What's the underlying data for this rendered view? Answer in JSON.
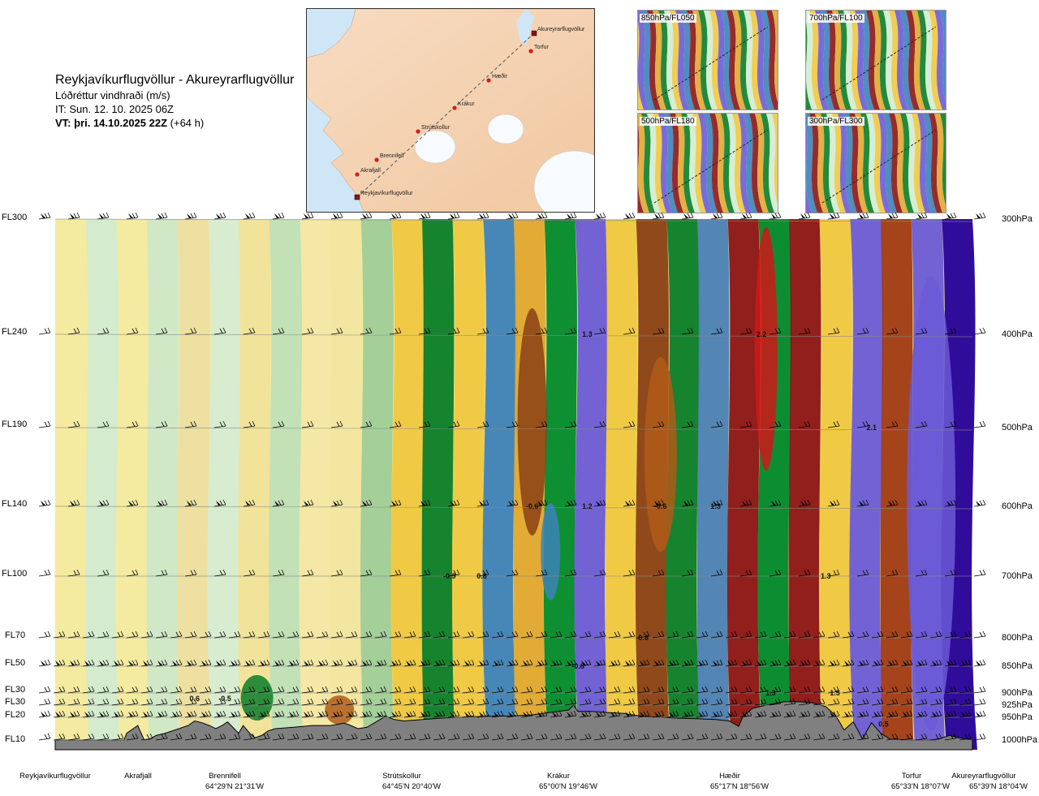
{
  "header": {
    "route": "Reykjavíkurflugvöllur - Akureyrarflugvöllur",
    "variable": "Lóðréttur vindhraði (m/s)",
    "issue_time": "IT: Sun. 12. 10. 2025 06Z",
    "valid_time_bold": "VT: þri. 14.10.2025 22Z",
    "valid_time_offset": "(+64 h)"
  },
  "map": {
    "points": [
      {
        "name": "Akureyrarflugvöllur"
      },
      {
        "name": "Torfur"
      },
      {
        "name": "Hæðir"
      },
      {
        "name": "Krákur"
      },
      {
        "name": "Strútskollur"
      },
      {
        "name": "Brennifell"
      },
      {
        "name": "Akrafjall"
      },
      {
        "name": "Reykjavíkurflugvöllur"
      }
    ]
  },
  "thumbnails": [
    {
      "label": "850hPa/FL050"
    },
    {
      "label": "700hPa/FL100"
    },
    {
      "label": "500hPa/FL180"
    },
    {
      "label": "300hPa/FL300"
    }
  ],
  "colors": {
    "band": [
      "#f3eba0",
      "#d2ecd0",
      "#f3eba0",
      "#cfe8c8",
      "#ecdfa0",
      "#d6ecd2",
      "#f0e49a",
      "#bfe0b8",
      "#f4e7a5",
      "#f2e6a0",
      "#9fce99",
      "#f0c840",
      "#0a7d28",
      "#f0c840",
      "#3d82b8",
      "#e0a830",
      "#008a2c",
      "#6a5bd6",
      "#f0c840",
      "#8a4014",
      "#0a7d28",
      "#4a7fb6",
      "#8b1414",
      "#00882c",
      "#8b1414",
      "#f0c840",
      "#6a5bd6",
      "#a03a14",
      "#6a5bd6",
      "#25009a"
    ],
    "terrain": "#808080"
  },
  "chart_data": {
    "type": "heatmap",
    "title": "Reykjavíkurflugvöllur - Akureyrarflugvöllur",
    "variable": "Lóðréttur vindhraði (m/s)",
    "flight_levels": [
      "FL300",
      "FL240",
      "FL190",
      "FL140",
      "FL100",
      "FL70",
      "FL50",
      "FL30",
      "FL30",
      "FL20",
      "FL10"
    ],
    "pressure_levels": [
      "300hPa",
      "400hPa",
      "500hPa",
      "600hPa",
      "700hPa",
      "800hPa",
      "850hPa",
      "900hPa",
      "925hPa",
      "950hPa",
      "1000hPa"
    ],
    "pressure_values": [
      300,
      400,
      500,
      600,
      700,
      800,
      850,
      900,
      925,
      950,
      1000
    ],
    "locations": [
      {
        "name": "Reykjavíkurflugvöllur",
        "coord": "",
        "x": 0.0
      },
      {
        "name": "Akrafjall",
        "coord": "",
        "x": 0.09
      },
      {
        "name": "Brennifell",
        "coord": "64°29'N 21°31'W",
        "x": 0.187
      },
      {
        "name": "Strútskollur",
        "coord": "64°45'N 20°40'W",
        "x": 0.377
      },
      {
        "name": "Krákur",
        "coord": "65°00'N 19°46'W",
        "x": 0.575
      },
      {
        "name": "Hæðir",
        "coord": "65°17'N 18°56'W",
        "x": 0.771
      },
      {
        "name": "Torfur",
        "coord": "65°33'N 18°07'W",
        "x": 0.94
      },
      {
        "name": "Akureyrarflugvöllur",
        "coord": "65°39'N 18°04'W",
        "x": 1.0
      }
    ],
    "value_labels": [
      {
        "text": "1.3",
        "x": 0.58,
        "p": 400
      },
      {
        "text": "2.2",
        "x": 0.77,
        "p": 400
      },
      {
        "text": "2.1",
        "x": 0.89,
        "p": 500
      },
      {
        "text": "-0.6",
        "x": 0.52,
        "p": 600
      },
      {
        "text": "1.2",
        "x": 0.58,
        "p": 600
      },
      {
        "text": "-0.6",
        "x": 0.66,
        "p": 600
      },
      {
        "text": "1.3",
        "x": 0.72,
        "p": 600
      },
      {
        "text": "-0.9",
        "x": 0.43,
        "p": 700
      },
      {
        "text": "0.8",
        "x": 0.465,
        "p": 700
      },
      {
        "text": "1.3",
        "x": 0.84,
        "p": 700
      },
      {
        "text": "-0.6",
        "x": 0.64,
        "p": 800
      },
      {
        "text": "-0.8",
        "x": 0.57,
        "p": 850
      },
      {
        "text": "1.3",
        "x": 0.78,
        "p": 900
      },
      {
        "text": "1.5",
        "x": 0.85,
        "p": 900
      },
      {
        "text": "0.6",
        "x": 0.152,
        "p": 912
      },
      {
        "text": "-0.5",
        "x": 0.185,
        "p": 912
      },
      {
        "text": "0.5",
        "x": 0.903,
        "p": 965
      }
    ],
    "terrain_profile": [
      [
        0.0,
        1000
      ],
      [
        0.075,
        1000
      ],
      [
        0.078,
        985
      ],
      [
        0.085,
        975
      ],
      [
        0.09,
        968
      ],
      [
        0.097,
        1000
      ],
      [
        0.103,
        998
      ],
      [
        0.11,
        990
      ],
      [
        0.12,
        985
      ],
      [
        0.135,
        975
      ],
      [
        0.145,
        968
      ],
      [
        0.152,
        958
      ],
      [
        0.16,
        962
      ],
      [
        0.168,
        968
      ],
      [
        0.175,
        975
      ],
      [
        0.182,
        968
      ],
      [
        0.188,
        960
      ],
      [
        0.195,
        975
      ],
      [
        0.2,
        985
      ],
      [
        0.205,
        968
      ],
      [
        0.212,
        985
      ],
      [
        0.218,
        995
      ],
      [
        0.225,
        990
      ],
      [
        0.232,
        980
      ],
      [
        0.24,
        975
      ],
      [
        0.26,
        972
      ],
      [
        0.28,
        968
      ],
      [
        0.3,
        968
      ],
      [
        0.315,
        963
      ],
      [
        0.32,
        966
      ],
      [
        0.33,
        975
      ],
      [
        0.34,
        972
      ],
      [
        0.35,
        960
      ],
      [
        0.36,
        948
      ],
      [
        0.37,
        955
      ],
      [
        0.38,
        958
      ],
      [
        0.4,
        955
      ],
      [
        0.42,
        952
      ],
      [
        0.44,
        950
      ],
      [
        0.47,
        948
      ],
      [
        0.5,
        947
      ],
      [
        0.52,
        945
      ],
      [
        0.54,
        940
      ],
      [
        0.56,
        935
      ],
      [
        0.565,
        925
      ],
      [
        0.57,
        938
      ],
      [
        0.585,
        938
      ],
      [
        0.6,
        940
      ],
      [
        0.62,
        942
      ],
      [
        0.64,
        948
      ],
      [
        0.66,
        950
      ],
      [
        0.68,
        952
      ],
      [
        0.7,
        953
      ],
      [
        0.72,
        955
      ],
      [
        0.735,
        958
      ],
      [
        0.745,
        970
      ],
      [
        0.75,
        948
      ],
      [
        0.76,
        932
      ],
      [
        0.775,
        925
      ],
      [
        0.795,
        918
      ],
      [
        0.81,
        918
      ],
      [
        0.825,
        920
      ],
      [
        0.84,
        928
      ],
      [
        0.85,
        945
      ],
      [
        0.855,
        960
      ],
      [
        0.86,
        978
      ],
      [
        0.87,
        960
      ],
      [
        0.875,
        978
      ],
      [
        0.88,
        998
      ],
      [
        0.885,
        980
      ],
      [
        0.89,
        962
      ],
      [
        0.9,
        985
      ],
      [
        0.91,
        998
      ],
      [
        0.93,
        1000
      ],
      [
        0.96,
        1000
      ],
      [
        0.975,
        990
      ],
      [
        0.985,
        995
      ],
      [
        1.0,
        1000
      ]
    ]
  }
}
